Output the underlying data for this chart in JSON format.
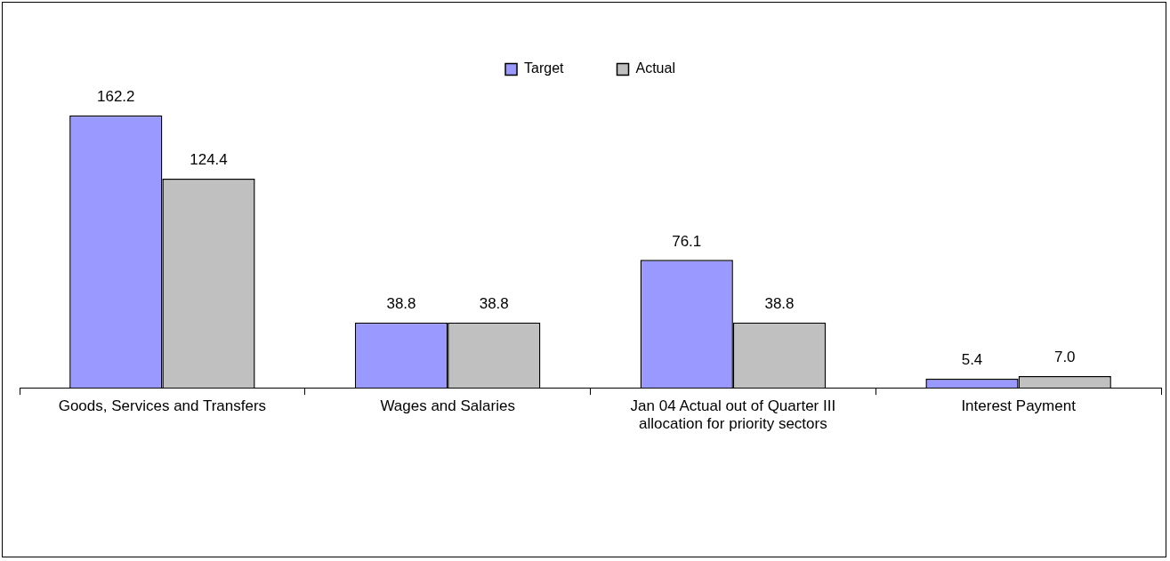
{
  "chart_data": {
    "type": "bar",
    "categories": [
      "Goods, Services and Transfers",
      "Wages and Salaries",
      "Jan 04 Actual out of Quarter III allocation for priority sectors",
      "Interest Payment"
    ],
    "series": [
      {
        "name": "Target",
        "color": "#9999ff",
        "values": [
          162.2,
          38.8,
          76.1,
          5.4
        ],
        "value_labels": [
          "162.2",
          "38.8",
          "76.1",
          "5.4"
        ]
      },
      {
        "name": "Actual",
        "color": "#c0c0c0",
        "values": [
          124.4,
          38.8,
          38.8,
          7.0
        ],
        "value_labels": [
          "124.4",
          "38.8",
          "38.8",
          "7.0"
        ]
      }
    ],
    "legend": "top",
    "grid": false
  }
}
